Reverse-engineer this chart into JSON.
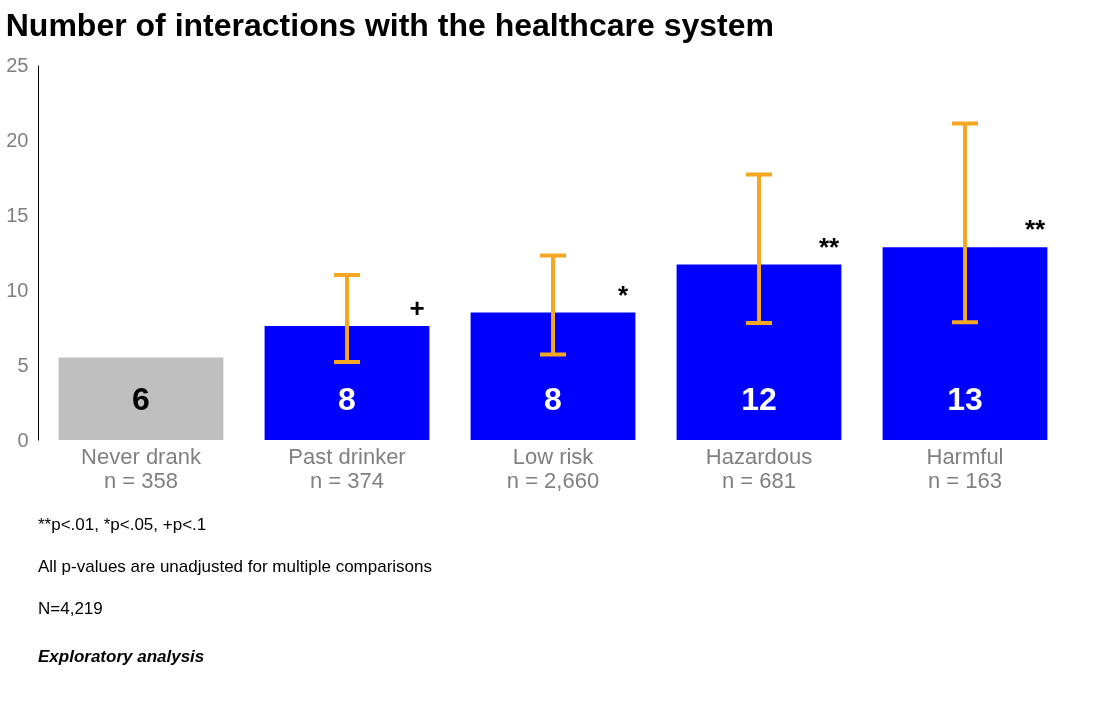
{
  "chart_data": {
    "type": "bar",
    "title": "Number of interactions with the healthcare system",
    "categories": [
      "Never drank\nn = 358",
      "Past drinker\nn = 374",
      "Low risk\nn = 2,660",
      "Hazardous\nn = 681",
      "Harmful\nn = 163"
    ],
    "values": [
      5.5,
      7.6,
      8.5,
      11.7,
      12.85
    ],
    "colors": [
      "#bfbfbf",
      "#0000ff",
      "#0000ff",
      "#0000ff",
      "#0000ff"
    ],
    "errors": [
      null,
      [
        5.2,
        11.0
      ],
      [
        5.7,
        12.3
      ],
      [
        7.8,
        17.7
      ],
      [
        7.85,
        21.1
      ]
    ],
    "value_labels": [
      "6",
      "8",
      "8",
      "12",
      "13"
    ],
    "ylim": [
      0,
      25
    ],
    "yticks": [
      0,
      5,
      10,
      15,
      20,
      25
    ],
    "grid": false,
    "annotations": [
      {
        "text": "+",
        "x": "Past drinker\nn = 374",
        "y": 7.6
      },
      {
        "text": "*",
        "x": "Low risk\nn = 2,660",
        "y": 8.5
      },
      {
        "text": "**",
        "x": "Hazardous\nn = 681",
        "y": 11.7
      },
      {
        "text": "**",
        "x": "Harmful\nn = 163",
        "y": 12.85
      },
      "**p<.01,    *p<.05,    +p<.1",
      "All p-values are unadjusted for multiple comparisons",
      "N=4,219",
      "Exploratory analysis"
    ]
  }
}
